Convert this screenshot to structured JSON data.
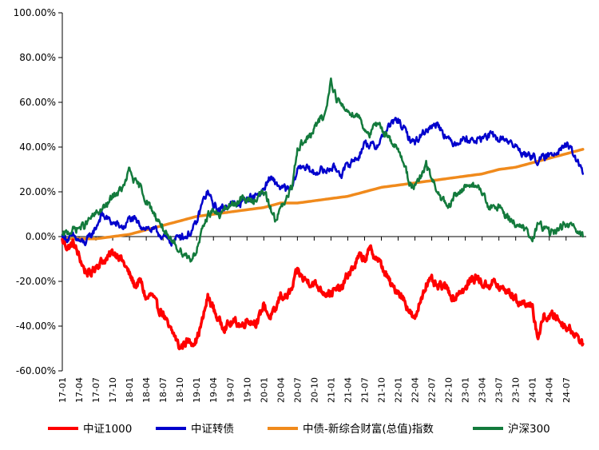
{
  "chart_data": {
    "type": "line",
    "title": "",
    "xlabel": "",
    "ylabel": "",
    "ylim": [
      -60,
      100
    ],
    "y_ticks": [
      100,
      80,
      60,
      40,
      20,
      0,
      -20,
      -40,
      -60
    ],
    "y_tick_labels": [
      "100.00%",
      "80.00%",
      "60.00%",
      "40.00%",
      "20.00%",
      "0.00%",
      "-20.00%",
      "-40.00%",
      "-60.00%"
    ],
    "x_tick_labels": [
      "17-01",
      "17-04",
      "17-07",
      "17-10",
      "18-01",
      "18-04",
      "18-07",
      "18-10",
      "19-01",
      "19-04",
      "19-07",
      "19-10",
      "20-01",
      "20-04",
      "20-07",
      "20-10",
      "21-01",
      "21-04",
      "21-07",
      "21-10",
      "22-01",
      "22-04",
      "22-07",
      "22-10",
      "23-01",
      "23-04",
      "23-07",
      "23-10",
      "24-01",
      "24-04",
      "24-07"
    ],
    "x_range": [
      "17-01",
      "24-10"
    ],
    "x_tick_step_months": 3,
    "grid": false,
    "legend_position": "bottom",
    "series": [
      {
        "name": "中证1000",
        "color": "#ff0000",
        "line_width": 3.5,
        "x": [
          "17-01",
          "17-02",
          "17-03",
          "17-04",
          "17-05",
          "17-06",
          "17-07",
          "17-08",
          "17-09",
          "17-10",
          "17-11",
          "17-12",
          "18-01",
          "18-02",
          "18-03",
          "18-04",
          "18-05",
          "18-06",
          "18-07",
          "18-08",
          "18-09",
          "18-10",
          "18-11",
          "18-12",
          "19-01",
          "19-02",
          "19-03",
          "19-04",
          "19-05",
          "19-06",
          "19-07",
          "19-08",
          "19-09",
          "19-10",
          "19-11",
          "19-12",
          "20-01",
          "20-02",
          "20-03",
          "20-04",
          "20-05",
          "20-06",
          "20-07",
          "20-08",
          "20-09",
          "20-10",
          "20-11",
          "20-12",
          "21-01",
          "21-02",
          "21-03",
          "21-04",
          "21-05",
          "21-06",
          "21-07",
          "21-08",
          "21-09",
          "21-10",
          "21-11",
          "21-12",
          "22-01",
          "22-02",
          "22-03",
          "22-04",
          "22-05",
          "22-06",
          "22-07",
          "22-08",
          "22-09",
          "22-10",
          "22-11",
          "22-12",
          "23-01",
          "23-02",
          "23-03",
          "23-04",
          "23-05",
          "23-06",
          "23-07",
          "23-08",
          "23-09",
          "23-10",
          "23-11",
          "23-12",
          "24-01",
          "24-02",
          "24-03",
          "24-04",
          "24-05",
          "24-06",
          "24-07",
          "24-08",
          "24-09",
          "24-10"
        ],
        "values": [
          -2,
          -5,
          -3,
          -9,
          -15,
          -17,
          -13,
          -11,
          -10,
          -7,
          -8,
          -12,
          -17,
          -22,
          -20,
          -28,
          -26,
          -32,
          -34,
          -41,
          -44,
          -50,
          -47,
          -47,
          -46,
          -38,
          -27,
          -32,
          -38,
          -40,
          -39,
          -38,
          -40,
          -37,
          -38,
          -38,
          -30,
          -36,
          -34,
          -26,
          -27,
          -24,
          -15,
          -19,
          -20,
          -21,
          -23,
          -25,
          -25,
          -24,
          -23,
          -17,
          -14,
          -9,
          -10,
          -6,
          -9,
          -13,
          -18,
          -23,
          -24,
          -28,
          -33,
          -38,
          -28,
          -21,
          -20,
          -23,
          -22,
          -24,
          -28,
          -24,
          -24,
          -19,
          -18,
          -21,
          -22,
          -20,
          -23,
          -24,
          -25,
          -28,
          -30,
          -29,
          -33,
          -45,
          -36,
          -36,
          -35,
          -38,
          -40,
          -42,
          -44,
          -48
        ]
      },
      {
        "name": "中证转债",
        "color": "#0000cc",
        "line_width": 2.5,
        "x": [
          "17-01",
          "17-02",
          "17-03",
          "17-04",
          "17-05",
          "17-06",
          "17-07",
          "17-08",
          "17-09",
          "17-10",
          "17-11",
          "17-12",
          "18-01",
          "18-02",
          "18-03",
          "18-04",
          "18-05",
          "18-06",
          "18-07",
          "18-08",
          "18-09",
          "18-10",
          "18-11",
          "18-12",
          "19-01",
          "19-02",
          "19-03",
          "19-04",
          "19-05",
          "19-06",
          "19-07",
          "19-08",
          "19-09",
          "19-10",
          "19-11",
          "19-12",
          "20-01",
          "20-02",
          "20-03",
          "20-04",
          "20-05",
          "20-06",
          "20-07",
          "20-08",
          "20-09",
          "20-10",
          "20-11",
          "20-12",
          "21-01",
          "21-02",
          "21-03",
          "21-04",
          "21-05",
          "21-06",
          "21-07",
          "21-08",
          "21-09",
          "21-10",
          "21-11",
          "21-12",
          "22-01",
          "22-02",
          "22-03",
          "22-04",
          "22-05",
          "22-06",
          "22-07",
          "22-08",
          "22-09",
          "22-10",
          "22-11",
          "22-12",
          "23-01",
          "23-02",
          "23-03",
          "23-04",
          "23-05",
          "23-06",
          "23-07",
          "23-08",
          "23-09",
          "23-10",
          "23-11",
          "23-12",
          "24-01",
          "24-02",
          "24-03",
          "24-04",
          "24-05",
          "24-06",
          "24-07",
          "24-08",
          "24-09",
          "24-10"
        ],
        "values": [
          0,
          -1,
          0,
          -2,
          -3,
          0,
          4,
          10,
          8,
          6,
          5,
          4,
          8,
          7,
          5,
          4,
          3,
          2,
          0,
          -2,
          -2,
          1,
          0,
          2,
          6,
          15,
          20,
          14,
          12,
          13,
          15,
          14,
          15,
          17,
          18,
          19,
          21,
          26,
          24,
          22,
          21,
          21,
          30,
          32,
          30,
          28,
          30,
          29,
          31,
          30,
          28,
          32,
          34,
          36,
          42,
          41,
          40,
          44,
          48,
          51,
          52,
          48,
          44,
          42,
          45,
          48,
          49,
          51,
          47,
          43,
          42,
          43,
          44,
          43,
          43,
          44,
          45,
          45,
          43,
          44,
          42,
          40,
          38,
          36,
          36,
          34,
          35,
          36,
          38,
          40,
          41,
          38,
          34,
          28
        ]
      },
      {
        "name": "中债-新综合财富(总值)指数",
        "color": "#f08a1c",
        "line_width": 3.5,
        "x": [
          "17-01",
          "17-04",
          "17-07",
          "17-10",
          "18-01",
          "18-04",
          "18-07",
          "18-10",
          "19-01",
          "19-04",
          "19-07",
          "19-10",
          "20-01",
          "20-04",
          "20-07",
          "20-10",
          "21-01",
          "21-04",
          "21-07",
          "21-10",
          "22-01",
          "22-04",
          "22-07",
          "22-10",
          "23-01",
          "23-04",
          "23-07",
          "23-10",
          "24-01",
          "24-04",
          "24-07",
          "24-10"
        ],
        "values": [
          -1,
          -1,
          -1,
          0,
          1,
          3,
          5,
          7,
          9,
          10,
          11,
          12,
          13,
          15,
          15,
          16,
          17,
          18,
          20,
          22,
          23,
          24,
          25,
          26,
          27,
          28,
          30,
          31,
          33,
          35,
          37,
          39
        ]
      },
      {
        "name": "沪深300",
        "color": "#137a3c",
        "line_width": 2.5,
        "x": [
          "17-01",
          "17-02",
          "17-03",
          "17-04",
          "17-05",
          "17-06",
          "17-07",
          "17-08",
          "17-09",
          "17-10",
          "17-11",
          "17-12",
          "18-01",
          "18-02",
          "18-03",
          "18-04",
          "18-05",
          "18-06",
          "18-07",
          "18-08",
          "18-09",
          "18-10",
          "18-11",
          "18-12",
          "19-01",
          "19-02",
          "19-03",
          "19-04",
          "19-05",
          "19-06",
          "19-07",
          "19-08",
          "19-09",
          "19-10",
          "19-11",
          "19-12",
          "20-01",
          "20-02",
          "20-03",
          "20-04",
          "20-05",
          "20-06",
          "20-07",
          "20-08",
          "20-09",
          "20-10",
          "20-11",
          "20-12",
          "21-01",
          "21-02",
          "21-03",
          "21-04",
          "21-05",
          "21-06",
          "21-07",
          "21-08",
          "21-09",
          "21-10",
          "21-11",
          "21-12",
          "22-01",
          "22-02",
          "22-03",
          "22-04",
          "22-05",
          "22-06",
          "22-07",
          "22-08",
          "22-09",
          "22-10",
          "22-11",
          "22-12",
          "23-01",
          "23-02",
          "23-03",
          "23-04",
          "23-05",
          "23-06",
          "23-07",
          "23-08",
          "23-09",
          "23-10",
          "23-11",
          "23-12",
          "24-01",
          "24-02",
          "24-03",
          "24-04",
          "24-05",
          "24-06",
          "24-07",
          "24-08",
          "24-09",
          "24-10"
        ],
        "values": [
          0,
          2,
          3,
          4,
          5,
          8,
          10,
          12,
          14,
          18,
          20,
          22,
          30,
          24,
          22,
          16,
          12,
          8,
          4,
          -2,
          -3,
          -6,
          -8,
          -10,
          -6,
          2,
          10,
          12,
          9,
          12,
          14,
          15,
          17,
          16,
          16,
          18,
          20,
          14,
          8,
          12,
          16,
          22,
          40,
          42,
          44,
          48,
          52,
          55,
          70,
          62,
          58,
          56,
          55,
          54,
          48,
          46,
          50,
          48,
          46,
          42,
          38,
          34,
          24,
          22,
          26,
          32,
          26,
          20,
          16,
          12,
          18,
          20,
          22,
          24,
          22,
          20,
          14,
          12,
          14,
          10,
          8,
          6,
          4,
          2,
          -2,
          6,
          4,
          2,
          2,
          4,
          6,
          4,
          2,
          0
        ]
      }
    ]
  }
}
